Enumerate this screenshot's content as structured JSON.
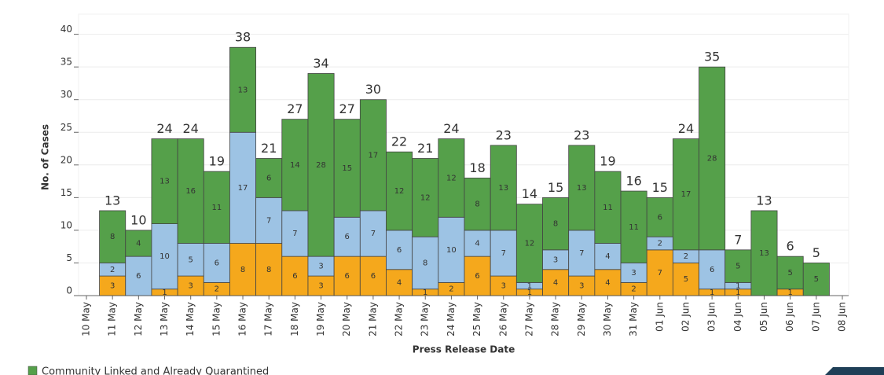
{
  "chart_data": {
    "type": "stacked_bar",
    "xlabel": "Press Release Date",
    "ylabel": "No. of Cases",
    "categories": [
      "10 May",
      "11 May",
      "12 May",
      "13 May",
      "14 May",
      "15 May",
      "16 May",
      "17 May",
      "18 May",
      "19 May",
      "20 May",
      "21 May",
      "22 May",
      "23 May",
      "24 May",
      "25 May",
      "26 May",
      "27 May",
      "28 May",
      "29 May",
      "30 May",
      "31 May",
      "01 Jun",
      "02 Jun",
      "03 Jun",
      "04 Jun",
      "05 Jun",
      "06 Jun",
      "07 Jun",
      "08 Jun"
    ],
    "series": [
      {
        "color": "#f5a81c",
        "values": [
          null,
          3,
          null,
          1,
          3,
          2,
          8,
          8,
          6,
          3,
          6,
          6,
          4,
          1,
          2,
          6,
          3,
          1,
          4,
          3,
          4,
          2,
          7,
          5,
          1,
          1,
          null,
          1,
          null,
          null
        ]
      },
      {
        "color": "#9dc3e4",
        "values": [
          null,
          2,
          6,
          10,
          5,
          6,
          17,
          7,
          7,
          3,
          6,
          7,
          6,
          8,
          10,
          4,
          7,
          1,
          3,
          7,
          4,
          3,
          2,
          2,
          6,
          1,
          null,
          null,
          null,
          null
        ]
      },
      {
        "name": "Community Linked and Already Quarantined",
        "color": "#55a04a",
        "values": [
          null,
          8,
          4,
          13,
          16,
          11,
          13,
          6,
          14,
          28,
          15,
          17,
          12,
          12,
          12,
          8,
          13,
          12,
          8,
          13,
          11,
          11,
          6,
          17,
          28,
          5,
          13,
          5,
          5,
          null
        ]
      }
    ],
    "totals": [
      null,
      13,
      10,
      24,
      24,
      19,
      38,
      21,
      27,
      34,
      27,
      30,
      22,
      21,
      24,
      18,
      23,
      14,
      15,
      23,
      19,
      16,
      15,
      24,
      35,
      7,
      13,
      6,
      5,
      null
    ],
    "ylim": [
      0,
      42
    ],
    "yticks": [
      0,
      5,
      10,
      15,
      20,
      25,
      30,
      35,
      40
    ],
    "grid": true
  }
}
